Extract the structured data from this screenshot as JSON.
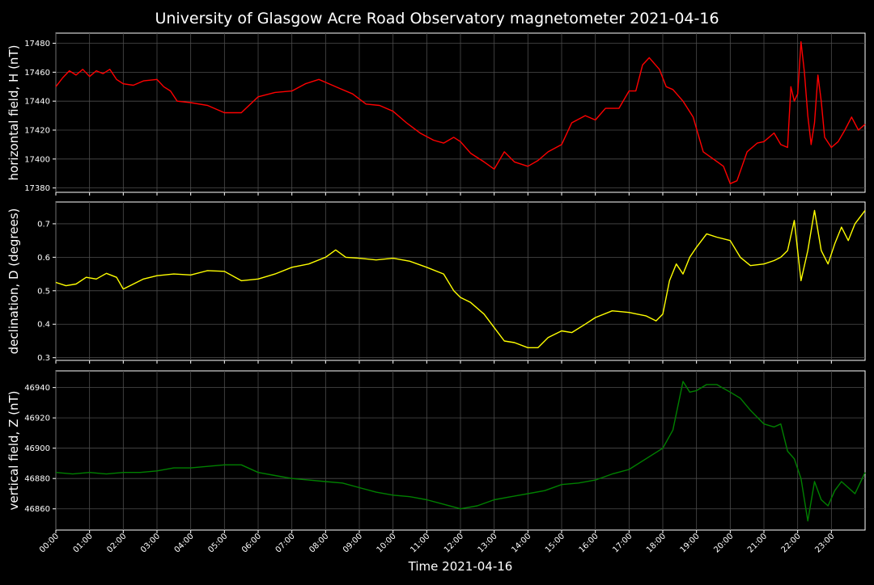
{
  "title": "University of Glasgow Acre Road Observatory magnetometer 2021-04-16",
  "xlabel": "Time 2021-04-16",
  "x_tick_labels": [
    "00:00",
    "01:00",
    "02:00",
    "03:00",
    "04:00",
    "05:00",
    "06:00",
    "07:00",
    "08:00",
    "09:00",
    "10:00",
    "11:00",
    "12:00",
    "13:00",
    "14:00",
    "15:00",
    "16:00",
    "17:00",
    "18:00",
    "19:00",
    "20:00",
    "21:00",
    "22:00",
    "23:00"
  ],
  "chart_data": [
    {
      "type": "line",
      "ylabel": "horizontal field, H (nT)",
      "color": "#ff0000",
      "xlim": [
        0,
        24
      ],
      "ylim": [
        17377,
        17487
      ],
      "yticks": [
        17380,
        17400,
        17420,
        17440,
        17460,
        17480
      ],
      "grid": true,
      "x": [
        0,
        0.2,
        0.4,
        0.6,
        0.8,
        1.0,
        1.2,
        1.4,
        1.6,
        1.8,
        2.0,
        2.3,
        2.6,
        3.0,
        3.2,
        3.4,
        3.6,
        4.0,
        4.5,
        5.0,
        5.5,
        6.0,
        6.5,
        7.0,
        7.4,
        7.8,
        8.0,
        8.4,
        8.8,
        9.2,
        9.6,
        10.0,
        10.4,
        10.8,
        11.2,
        11.5,
        11.8,
        12.0,
        12.3,
        12.7,
        13.0,
        13.3,
        13.6,
        14.0,
        14.3,
        14.6,
        15.0,
        15.3,
        15.7,
        16.0,
        16.3,
        16.7,
        17.0,
        17.2,
        17.4,
        17.6,
        17.9,
        18.1,
        18.3,
        18.6,
        18.9,
        19.2,
        19.5,
        19.8,
        20.0,
        20.2,
        20.5,
        20.8,
        21.0,
        21.3,
        21.5,
        21.7,
        21.8,
        21.9,
        22.0,
        22.1,
        22.2,
        22.3,
        22.4,
        22.5,
        22.6,
        22.7,
        22.8,
        23.0,
        23.2,
        23.4,
        23.6,
        23.8,
        24.0
      ],
      "y": [
        17450,
        17456,
        17461,
        17458,
        17462,
        17457,
        17461,
        17459,
        17462,
        17455,
        17452,
        17451,
        17454,
        17455,
        17450,
        17447,
        17440,
        17439,
        17437,
        17432,
        17432,
        17443,
        17446,
        17447,
        17452,
        17455,
        17453,
        17449,
        17445,
        17438,
        17437,
        17433,
        17425,
        17418,
        17413,
        17411,
        17415,
        17412,
        17404,
        17398,
        17393,
        17405,
        17398,
        17395,
        17399,
        17405,
        17410,
        17425,
        17430,
        17427,
        17435,
        17435,
        17447,
        17447,
        17465,
        17470,
        17462,
        17450,
        17448,
        17440,
        17429,
        17405,
        17400,
        17395,
        17383,
        17385,
        17405,
        17411,
        17412,
        17418,
        17410,
        17408,
        17450,
        17440,
        17445,
        17481,
        17460,
        17430,
        17410,
        17425,
        17458,
        17440,
        17415,
        17408,
        17412,
        17420,
        17429,
        17420,
        17424
      ]
    },
    {
      "type": "line",
      "ylabel": "declination, D (degrees)",
      "color": "#ffff00",
      "xlim": [
        0,
        24
      ],
      "ylim": [
        0.292,
        0.765
      ],
      "yticks": [
        0.3,
        0.4,
        0.5,
        0.6,
        0.7
      ],
      "grid": true,
      "x": [
        0,
        0.3,
        0.6,
        0.9,
        1.2,
        1.5,
        1.8,
        2.0,
        2.3,
        2.6,
        3.0,
        3.5,
        4.0,
        4.5,
        5.0,
        5.5,
        6.0,
        6.5,
        7.0,
        7.5,
        8.0,
        8.3,
        8.6,
        9.0,
        9.5,
        10.0,
        10.5,
        11.0,
        11.5,
        11.8,
        12.0,
        12.3,
        12.7,
        13.0,
        13.3,
        13.6,
        14.0,
        14.3,
        14.6,
        15.0,
        15.3,
        15.7,
        16.0,
        16.5,
        17.0,
        17.5,
        17.8,
        18.0,
        18.2,
        18.4,
        18.6,
        18.8,
        19.0,
        19.3,
        19.6,
        20.0,
        20.3,
        20.6,
        21.0,
        21.3,
        21.5,
        21.7,
        21.9,
        22.1,
        22.3,
        22.5,
        22.7,
        22.9,
        23.1,
        23.3,
        23.5,
        23.7,
        24.0
      ],
      "y": [
        0.525,
        0.515,
        0.52,
        0.54,
        0.535,
        0.552,
        0.54,
        0.505,
        0.52,
        0.535,
        0.545,
        0.55,
        0.547,
        0.56,
        0.558,
        0.53,
        0.535,
        0.55,
        0.57,
        0.58,
        0.6,
        0.622,
        0.6,
        0.597,
        0.592,
        0.597,
        0.588,
        0.57,
        0.55,
        0.5,
        0.48,
        0.465,
        0.43,
        0.39,
        0.35,
        0.345,
        0.33,
        0.33,
        0.36,
        0.38,
        0.375,
        0.4,
        0.42,
        0.44,
        0.435,
        0.425,
        0.41,
        0.43,
        0.53,
        0.58,
        0.55,
        0.6,
        0.63,
        0.67,
        0.66,
        0.65,
        0.6,
        0.575,
        0.58,
        0.59,
        0.6,
        0.62,
        0.71,
        0.53,
        0.62,
        0.74,
        0.62,
        0.58,
        0.64,
        0.69,
        0.65,
        0.7,
        0.74
      ]
    },
    {
      "type": "line",
      "ylabel": "vertical field, Z (nT)",
      "color": "#008000",
      "xlim": [
        0,
        24
      ],
      "ylim": [
        46846,
        46951
      ],
      "yticks": [
        46860,
        46880,
        46900,
        46920,
        46940
      ],
      "grid": true,
      "x": [
        0,
        0.5,
        1.0,
        1.5,
        2.0,
        2.5,
        3.0,
        3.5,
        4.0,
        4.5,
        5.0,
        5.5,
        6.0,
        6.5,
        7.0,
        7.5,
        8.0,
        8.5,
        9.0,
        9.5,
        10.0,
        10.5,
        11.0,
        11.5,
        12.0,
        12.5,
        13.0,
        13.5,
        14.0,
        14.5,
        15.0,
        15.5,
        16.0,
        16.5,
        17.0,
        17.5,
        18.0,
        18.3,
        18.6,
        18.8,
        19.0,
        19.3,
        19.6,
        20.0,
        20.3,
        20.6,
        21.0,
        21.3,
        21.5,
        21.7,
        21.9,
        22.1,
        22.3,
        22.5,
        22.7,
        22.9,
        23.1,
        23.3,
        23.5,
        23.7,
        24.0
      ],
      "y": [
        46884,
        46883,
        46884,
        46883,
        46884,
        46884,
        46885,
        46887,
        46887,
        46888,
        46889,
        46889,
        46884,
        46882,
        46880,
        46879,
        46878,
        46877,
        46874,
        46871,
        46869,
        46868,
        46866,
        46863,
        46860,
        46862,
        46866,
        46868,
        46870,
        46872,
        46876,
        46877,
        46879,
        46883,
        46886,
        46893,
        46900,
        46912,
        46944,
        46937,
        46938,
        46942,
        46942,
        46937,
        46933,
        46925,
        46916,
        46914,
        46916,
        46898,
        46893,
        46880,
        46852,
        46878,
        46866,
        46862,
        46872,
        46878,
        46874,
        46870,
        46884
      ]
    }
  ]
}
